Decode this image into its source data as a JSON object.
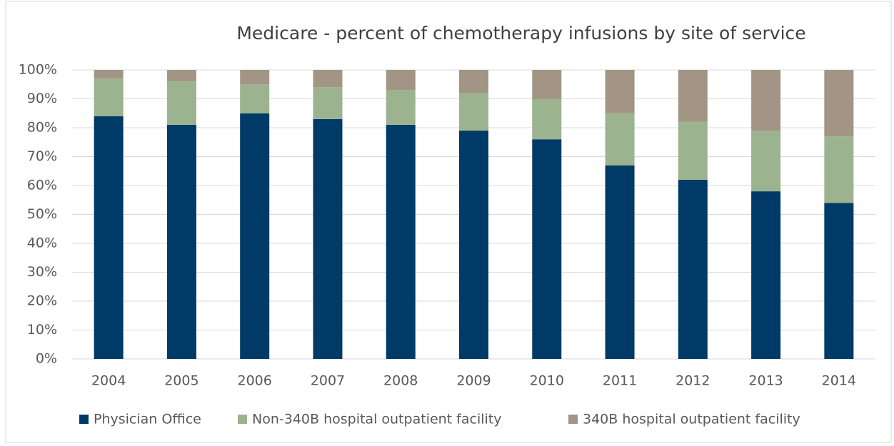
{
  "chart_data": {
    "type": "stacked_bar",
    "title": "Medicare - percent of chemotherapy infusions by site of service",
    "categories": [
      "2004",
      "2005",
      "2006",
      "2007",
      "2008",
      "2009",
      "2010",
      "2011",
      "2012",
      "2013",
      "2014"
    ],
    "series": [
      {
        "name": "Physician Office",
        "color": "#003a66",
        "values": [
          84,
          81,
          85,
          83,
          81,
          79,
          76,
          67,
          62,
          58,
          54
        ]
      },
      {
        "name": "Non-340B hospital outpatient facility",
        "color": "#9bb38f",
        "values": [
          13,
          15,
          10,
          11,
          12,
          13,
          14,
          18,
          20,
          21,
          23
        ]
      },
      {
        "name": "340B hospital outpatient facility",
        "color": "#a29585",
        "values": [
          3,
          4,
          5,
          6,
          7,
          8,
          10,
          15,
          18,
          21,
          23
        ]
      }
    ],
    "ylim": [
      0,
      100
    ],
    "yticks": [
      {
        "value": 0,
        "label": "0%"
      },
      {
        "value": 10,
        "label": "10%"
      },
      {
        "value": 20,
        "label": "20%"
      },
      {
        "value": 30,
        "label": "30%"
      },
      {
        "value": 40,
        "label": "40%"
      },
      {
        "value": 50,
        "label": "50%"
      },
      {
        "value": 60,
        "label": "60%"
      },
      {
        "value": 70,
        "label": "70%"
      },
      {
        "value": 80,
        "label": "80%"
      },
      {
        "value": 90,
        "label": "90%"
      },
      {
        "value": 100,
        "label": "100%"
      }
    ],
    "grid": true,
    "legend": "bottom"
  }
}
